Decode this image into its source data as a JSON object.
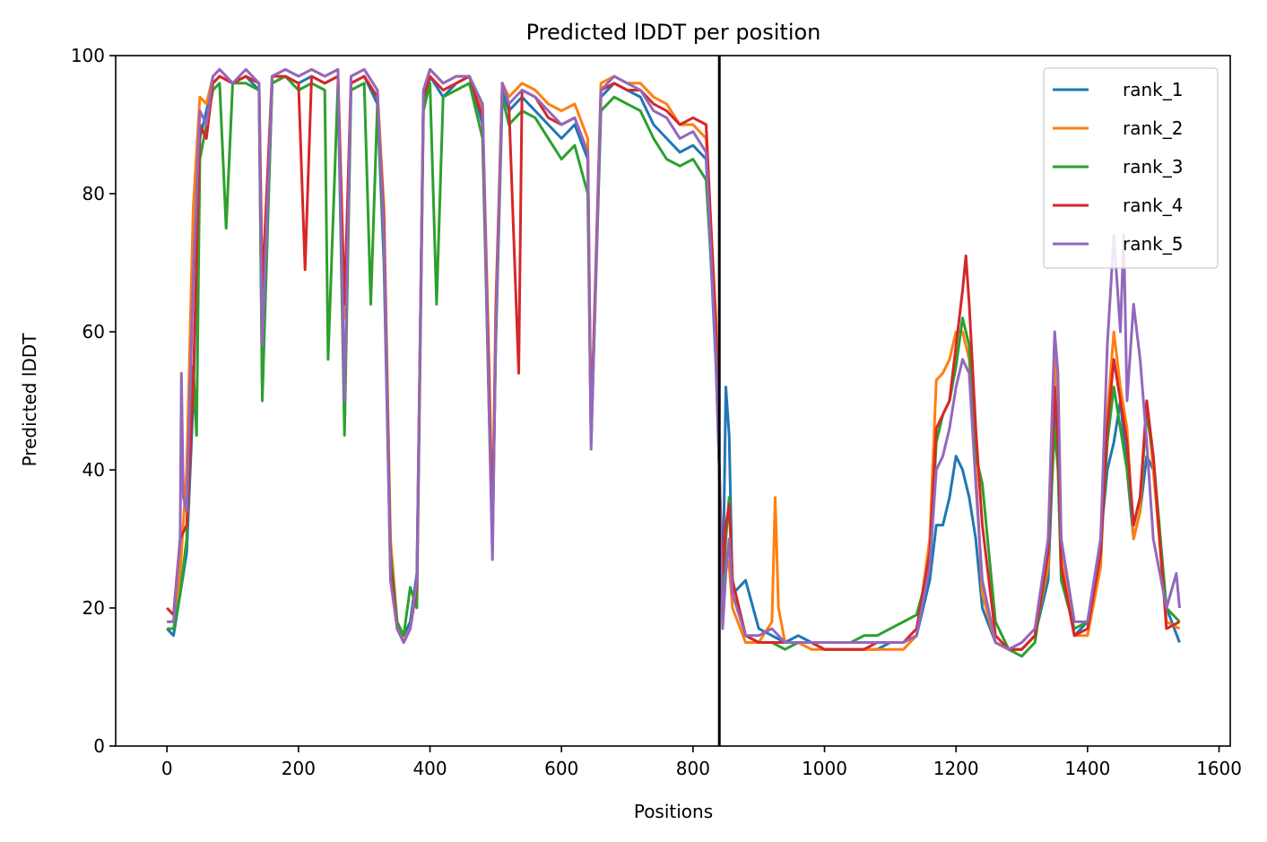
{
  "chart_data": {
    "type": "line",
    "title": "Predicted lDDT per position",
    "xlabel": "Positions",
    "ylabel": "Predicted lDDT",
    "xlim": [
      -78,
      1617
    ],
    "ylim": [
      0,
      100
    ],
    "xticks": [
      0,
      200,
      400,
      600,
      800,
      1000,
      1200,
      1400,
      1600
    ],
    "yticks": [
      0,
      20,
      40,
      60,
      80,
      100
    ],
    "grid": false,
    "legend_position": "top-right",
    "vline": 840,
    "series": [
      {
        "name": "rank_1",
        "color": "#1f77b4",
        "x": [
          0,
          10,
          20,
          30,
          40,
          50,
          60,
          70,
          80,
          100,
          120,
          140,
          145,
          160,
          180,
          200,
          220,
          240,
          260,
          270,
          280,
          300,
          320,
          330,
          340,
          350,
          360,
          370,
          380,
          390,
          400,
          420,
          440,
          460,
          480,
          490,
          495,
          500,
          510,
          520,
          540,
          560,
          580,
          600,
          620,
          640,
          645,
          660,
          680,
          700,
          720,
          740,
          760,
          780,
          800,
          820,
          835,
          840,
          845,
          850,
          855,
          860,
          880,
          900,
          920,
          940,
          960,
          980,
          1000,
          1020,
          1040,
          1060,
          1080,
          1100,
          1120,
          1140,
          1160,
          1170,
          1180,
          1190,
          1200,
          1210,
          1220,
          1230,
          1240,
          1260,
          1280,
          1300,
          1320,
          1340,
          1350,
          1355,
          1360,
          1380,
          1400,
          1420,
          1430,
          1440,
          1450,
          1460,
          1470,
          1480,
          1490,
          1500,
          1520,
          1540
        ],
        "y": [
          17,
          16,
          22,
          28,
          50,
          88,
          92,
          96,
          97,
          96,
          97,
          95,
          52,
          96,
          97,
          96,
          97,
          96,
          97,
          48,
          96,
          97,
          93,
          70,
          25,
          17,
          16,
          18,
          25,
          92,
          97,
          94,
          96,
          97,
          90,
          50,
          28,
          60,
          95,
          92,
          94,
          92,
          90,
          88,
          90,
          85,
          44,
          94,
          96,
          95,
          94,
          90,
          88,
          86,
          87,
          85,
          55,
          40,
          20,
          52,
          45,
          22,
          24,
          17,
          16,
          15,
          16,
          15,
          14,
          14,
          14,
          14,
          14,
          15,
          15,
          16,
          24,
          32,
          32,
          36,
          42,
          40,
          36,
          30,
          20,
          15,
          14,
          14,
          16,
          24,
          48,
          42,
          26,
          16,
          18,
          30,
          40,
          44,
          50,
          40,
          30,
          34,
          42,
          40,
          20,
          15
        ]
      },
      {
        "name": "rank_2",
        "color": "#ff7f0e",
        "x": [
          0,
          10,
          20,
          30,
          40,
          50,
          60,
          70,
          80,
          100,
          120,
          140,
          145,
          160,
          180,
          200,
          220,
          240,
          260,
          270,
          280,
          300,
          320,
          330,
          340,
          350,
          360,
          370,
          380,
          390,
          400,
          420,
          440,
          460,
          480,
          490,
          495,
          500,
          510,
          520,
          540,
          560,
          580,
          600,
          620,
          640,
          645,
          660,
          680,
          700,
          720,
          740,
          760,
          780,
          800,
          820,
          835,
          840,
          845,
          850,
          855,
          860,
          880,
          900,
          920,
          925,
          930,
          940,
          960,
          980,
          1000,
          1020,
          1040,
          1060,
          1080,
          1100,
          1120,
          1140,
          1160,
          1170,
          1180,
          1190,
          1200,
          1210,
          1220,
          1230,
          1240,
          1260,
          1280,
          1300,
          1320,
          1340,
          1350,
          1355,
          1360,
          1380,
          1400,
          1420,
          1430,
          1440,
          1450,
          1460,
          1470,
          1480,
          1490,
          1500,
          1520,
          1540
        ],
        "y": [
          18,
          18,
          25,
          40,
          78,
          94,
          93,
          97,
          98,
          96,
          97,
          96,
          66,
          97,
          98,
          97,
          98,
          97,
          98,
          62,
          97,
          98,
          95,
          78,
          30,
          18,
          15,
          17,
          24,
          94,
          98,
          96,
          97,
          97,
          92,
          55,
          32,
          64,
          96,
          94,
          96,
          95,
          93,
          92,
          93,
          88,
          46,
          96,
          97,
          96,
          96,
          94,
          93,
          90,
          90,
          88,
          62,
          40,
          22,
          28,
          26,
          20,
          15,
          15,
          18,
          36,
          20,
          15,
          15,
          14,
          14,
          14,
          14,
          14,
          14,
          14,
          14,
          16,
          30,
          53,
          54,
          56,
          60,
          60,
          56,
          40,
          22,
          15,
          14,
          14,
          16,
          26,
          56,
          50,
          28,
          16,
          16,
          26,
          48,
          60,
          52,
          46,
          30,
          34,
          50,
          40,
          18,
          17
        ]
      },
      {
        "name": "rank_3",
        "color": "#2ca02c",
        "x": [
          0,
          10,
          20,
          30,
          40,
          45,
          50,
          60,
          70,
          80,
          90,
          100,
          120,
          140,
          145,
          160,
          180,
          200,
          220,
          240,
          245,
          260,
          270,
          280,
          300,
          310,
          320,
          330,
          340,
          350,
          360,
          370,
          380,
          390,
          400,
          410,
          420,
          440,
          460,
          480,
          490,
          495,
          500,
          510,
          520,
          540,
          560,
          580,
          600,
          620,
          640,
          645,
          660,
          680,
          700,
          720,
          740,
          760,
          780,
          800,
          820,
          835,
          840,
          845,
          850,
          855,
          860,
          880,
          900,
          920,
          940,
          960,
          980,
          1000,
          1020,
          1040,
          1060,
          1080,
          1100,
          1120,
          1140,
          1160,
          1170,
          1180,
          1190,
          1200,
          1210,
          1220,
          1230,
          1240,
          1260,
          1280,
          1300,
          1320,
          1340,
          1350,
          1355,
          1360,
          1380,
          1400,
          1420,
          1430,
          1440,
          1450,
          1460,
          1470,
          1480,
          1490,
          1500,
          1520,
          1540
        ],
        "y": [
          17,
          17,
          22,
          30,
          55,
          45,
          85,
          90,
          95,
          96,
          75,
          96,
          96,
          95,
          50,
          96,
          97,
          95,
          96,
          95,
          56,
          96,
          45,
          95,
          96,
          64,
          93,
          72,
          28,
          18,
          16,
          23,
          20,
          92,
          96,
          64,
          94,
          95,
          96,
          88,
          48,
          30,
          58,
          94,
          90,
          92,
          91,
          88,
          85,
          87,
          80,
          44,
          92,
          94,
          93,
          92,
          88,
          85,
          84,
          85,
          82,
          58,
          40,
          22,
          30,
          36,
          24,
          16,
          15,
          15,
          14,
          15,
          15,
          15,
          15,
          15,
          16,
          16,
          17,
          18,
          19,
          26,
          44,
          48,
          50,
          55,
          62,
          58,
          42,
          38,
          18,
          14,
          13,
          15,
          28,
          46,
          40,
          24,
          17,
          18,
          28,
          44,
          52,
          46,
          40,
          32,
          36,
          48,
          42,
          20,
          18
        ]
      },
      {
        "name": "rank_4",
        "color": "#d62728",
        "x": [
          0,
          10,
          20,
          30,
          40,
          50,
          60,
          70,
          80,
          100,
          120,
          140,
          145,
          160,
          180,
          200,
          210,
          220,
          240,
          260,
          270,
          280,
          300,
          320,
          330,
          340,
          350,
          360,
          370,
          380,
          390,
          400,
          420,
          440,
          460,
          480,
          490,
          495,
          500,
          510,
          520,
          535,
          540,
          560,
          580,
          600,
          620,
          640,
          645,
          660,
          680,
          700,
          720,
          740,
          760,
          780,
          800,
          820,
          835,
          840,
          845,
          850,
          855,
          860,
          880,
          900,
          920,
          940,
          960,
          980,
          1000,
          1020,
          1040,
          1060,
          1080,
          1100,
          1120,
          1140,
          1160,
          1170,
          1180,
          1190,
          1200,
          1210,
          1215,
          1220,
          1230,
          1240,
          1260,
          1280,
          1300,
          1320,
          1340,
          1350,
          1355,
          1360,
          1380,
          1400,
          1420,
          1430,
          1440,
          1450,
          1460,
          1470,
          1480,
          1490,
          1500,
          1520,
          1540
        ],
        "y": [
          20,
          19,
          30,
          32,
          52,
          90,
          88,
          96,
          97,
          96,
          97,
          96,
          66,
          97,
          97,
          96,
          69,
          97,
          96,
          97,
          64,
          96,
          97,
          94,
          76,
          26,
          17,
          15,
          17,
          23,
          94,
          97,
          95,
          96,
          97,
          91,
          52,
          30,
          62,
          96,
          93,
          54,
          95,
          94,
          91,
          90,
          91,
          86,
          45,
          95,
          96,
          95,
          95,
          93,
          92,
          90,
          91,
          90,
          60,
          40,
          25,
          32,
          35,
          24,
          16,
          15,
          15,
          15,
          15,
          15,
          14,
          14,
          14,
          14,
          15,
          15,
          15,
          17,
          28,
          46,
          48,
          50,
          58,
          66,
          71,
          64,
          46,
          32,
          16,
          14,
          14,
          16,
          28,
          52,
          44,
          26,
          16,
          17,
          28,
          46,
          56,
          50,
          44,
          32,
          36,
          50,
          42,
          17,
          18
        ]
      },
      {
        "name": "rank_5",
        "color": "#9467bd",
        "x": [
          0,
          10,
          20,
          22,
          25,
          30,
          40,
          50,
          60,
          70,
          80,
          100,
          120,
          140,
          145,
          160,
          180,
          200,
          220,
          240,
          260,
          270,
          280,
          300,
          320,
          330,
          340,
          350,
          360,
          370,
          380,
          390,
          400,
          420,
          440,
          460,
          480,
          490,
          495,
          500,
          510,
          520,
          540,
          560,
          580,
          600,
          620,
          640,
          645,
          660,
          680,
          700,
          720,
          740,
          760,
          780,
          800,
          820,
          835,
          840,
          845,
          850,
          855,
          860,
          880,
          900,
          920,
          940,
          960,
          980,
          1000,
          1020,
          1040,
          1060,
          1080,
          1100,
          1120,
          1140,
          1160,
          1170,
          1180,
          1190,
          1200,
          1210,
          1220,
          1230,
          1240,
          1260,
          1280,
          1300,
          1320,
          1340,
          1350,
          1355,
          1360,
          1380,
          1400,
          1420,
          1430,
          1440,
          1450,
          1455,
          1460,
          1470,
          1480,
          1490,
          1500,
          1520,
          1535,
          1540
        ],
        "y": [
          18,
          18,
          30,
          54,
          36,
          34,
          68,
          92,
          90,
          97,
          98,
          96,
          98,
          96,
          58,
          97,
          98,
          97,
          98,
          97,
          98,
          50,
          97,
          98,
          95,
          74,
          24,
          17,
          15,
          17,
          24,
          95,
          98,
          96,
          97,
          97,
          93,
          48,
          27,
          60,
          96,
          93,
          95,
          94,
          92,
          90,
          91,
          86,
          43,
          95,
          97,
          96,
          95,
          92,
          91,
          88,
          89,
          86,
          56,
          40,
          17,
          25,
          30,
          22,
          16,
          16,
          17,
          15,
          15,
          15,
          15,
          15,
          15,
          15,
          15,
          15,
          15,
          16,
          26,
          40,
          42,
          46,
          52,
          56,
          54,
          38,
          24,
          15,
          14,
          15,
          17,
          30,
          60,
          54,
          30,
          18,
          18,
          30,
          58,
          74,
          60,
          74,
          50,
          64,
          56,
          44,
          30,
          20,
          25,
          20
        ]
      }
    ]
  }
}
